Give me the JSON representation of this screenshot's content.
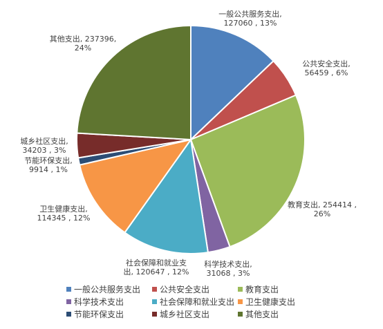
{
  "chart_data": {
    "type": "pie",
    "slices": [
      {
        "name": "一般公共服务支出",
        "value": 127060,
        "percent": "13%",
        "color": "#4f81bd",
        "label": [
          "一般公共服务支出,",
          "127060 , 13%"
        ]
      },
      {
        "name": "公共安全支出",
        "value": 56459,
        "percent": "6%",
        "color": "#c0504d",
        "label": [
          "公共安全支出,",
          "56459 , 6%"
        ]
      },
      {
        "name": "教育支出",
        "value": 254414,
        "percent": "26%",
        "color": "#9bbb59",
        "label": [
          "教育支出, 254414 ,",
          "26%"
        ]
      },
      {
        "name": "科学技术支出",
        "value": 31068,
        "percent": "3%",
        "color": "#8064a2",
        "label": [
          "科学技术支出,",
          "31068 , 3%"
        ]
      },
      {
        "name": "社会保障和就业支出",
        "value": 120647,
        "percent": "12%",
        "color": "#4bacc6",
        "label": [
          "社会保障和就业支",
          "出, 120647 , 12%"
        ]
      },
      {
        "name": "卫生健康支出",
        "value": 114345,
        "percent": "12%",
        "color": "#f79646",
        "label": [
          "卫生健康支出,",
          "114345 , 12%"
        ]
      },
      {
        "name": "节能环保支出",
        "value": 9914,
        "percent": "1%",
        "color": "#2c4d75",
        "label": [
          "节能环保支出,",
          "9914 , 1%"
        ]
      },
      {
        "name": "城乡社区支出",
        "value": 34203,
        "percent": "3%",
        "color": "#772c2a",
        "label": [
          "城乡社区支出,",
          "34203 , 3%"
        ]
      },
      {
        "name": "其他支出",
        "value": 237396,
        "percent": "24%",
        "color": "#5f7530",
        "label": [
          "其他支出, 237396,",
          "24%"
        ]
      }
    ],
    "legend_position": "bottom"
  }
}
